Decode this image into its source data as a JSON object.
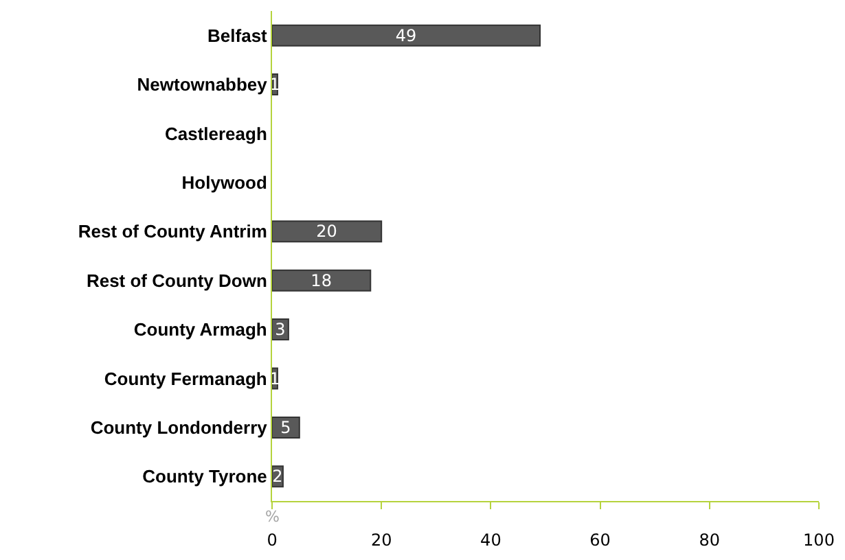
{
  "chart_data": {
    "type": "bar",
    "orientation": "horizontal",
    "xlabel": "%",
    "categories": [
      "Belfast",
      "Newtownabbey",
      "Castlereagh",
      "Holywood",
      "Rest of County Antrim",
      "Rest of County Down",
      "County Armagh",
      "County Fermanagh",
      "County Londonderry",
      "County Tyrone"
    ],
    "values": [
      49,
      1,
      0,
      0,
      20,
      18,
      3,
      1,
      5,
      2
    ],
    "value_labels": [
      "49",
      "1",
      null,
      null,
      "20",
      "18",
      "3",
      "1",
      "5",
      "2"
    ],
    "color": "#595959",
    "xlim": [
      0,
      100
    ],
    "xticks": [
      0,
      20,
      40,
      60,
      80,
      100
    ]
  }
}
